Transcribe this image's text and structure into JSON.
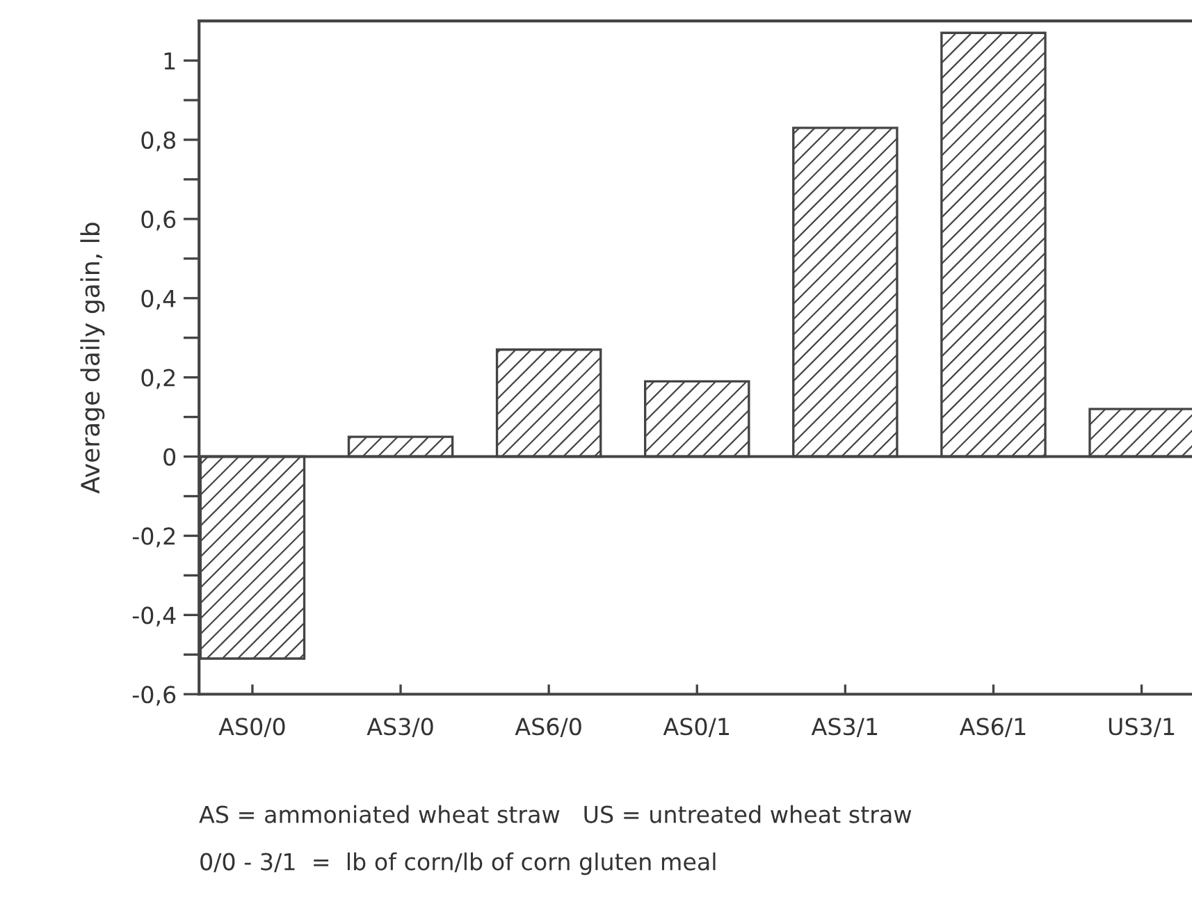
{
  "chart_data": {
    "type": "bar",
    "ylabel": "Average daily gain, lb",
    "categories": [
      "AS0/0",
      "AS3/0",
      "AS6/0",
      "AS0/1",
      "AS3/1",
      "AS6/1",
      "US3/1"
    ],
    "values": [
      -0.51,
      0.05,
      0.27,
      0.19,
      0.83,
      1.07,
      0.12
    ],
    "color": "#444444",
    "ylim": [
      -0.6,
      1.1
    ],
    "yticks": [
      {
        "value": -0.6,
        "label": "-0,6"
      },
      {
        "value": -0.5,
        "label": null
      },
      {
        "value": -0.4,
        "label": "-0,4"
      },
      {
        "value": -0.3,
        "label": null
      },
      {
        "value": -0.2,
        "label": "-0,2"
      },
      {
        "value": -0.1,
        "label": null
      },
      0,
      {
        "value": 0.1,
        "label": null
      },
      {
        "value": 0.2,
        "label": "0,2"
      },
      {
        "value": 0.3,
        "label": null
      },
      {
        "value": 0.4,
        "label": "0,4"
      },
      {
        "value": 0.5,
        "label": null
      },
      {
        "value": 0.6,
        "label": "0,6"
      },
      {
        "value": 0.7,
        "label": null
      },
      {
        "value": 0.8,
        "label": "0,8"
      },
      {
        "value": 0.9,
        "label": null
      },
      1
    ],
    "annotations": [
      "AS = ammoniated wheat straw   US = untreated wheat straw",
      "0/0 - 3/1  =  lb of corn/lb of corn gluten meal"
    ]
  }
}
